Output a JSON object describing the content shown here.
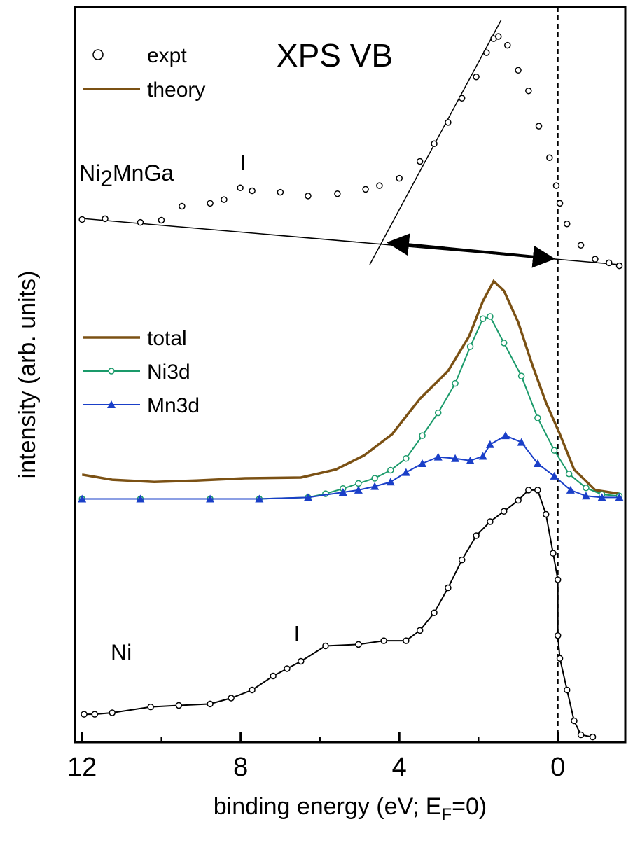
{
  "chart_data": {
    "type": "line",
    "title": "XPS VB",
    "xlabel": [
      "binding energy (eV; E",
      "F",
      "=0)"
    ],
    "ylabel": "intensity (arb. units)",
    "xlim": [
      12.18,
      -1.7
    ],
    "ylim": [
      0,
      100
    ],
    "xticks": [
      12,
      8,
      4,
      0
    ],
    "minor_xticks": [
      10,
      6,
      2
    ],
    "fermi_level": 0,
    "legend_top": {
      "theory_label": "theory",
      "theory_color": "#7b5114"
    },
    "sample_labels": [
      [
        "Ni",
        "2",
        "MnGa"
      ],
      [
        "Ni"
      ]
    ],
    "series": [
      {
        "name": "expt",
        "color": "#000000",
        "line": false,
        "marker": "circle",
        "x": [
          12.0,
          11.42,
          10.53,
          10.0,
          9.48,
          8.77,
          8.42,
          8.01,
          7.71,
          7.0,
          6.3,
          5.56,
          4.85,
          4.5,
          4.0,
          3.48,
          3.12,
          2.77,
          2.42,
          2.06,
          1.8,
          1.62,
          1.5,
          1.27,
          1.0,
          0.74,
          0.48,
          0.21,
          0.04,
          -0.05,
          -0.23,
          -0.58,
          -0.94,
          -1.29,
          -1.55
        ],
        "values": [
          71.1,
          71.2,
          70.7,
          71.0,
          72.9,
          73.3,
          73.8,
          75.4,
          75.0,
          74.8,
          74.3,
          74.6,
          75.2,
          75.7,
          76.7,
          79.0,
          81.4,
          84.3,
          87.6,
          90.5,
          93.8,
          95.7,
          96.0,
          94.8,
          91.4,
          88.6,
          83.8,
          79.5,
          75.7,
          73.3,
          70.5,
          67.6,
          65.7,
          65.2,
          64.8
        ]
      },
      {
        "name": "total",
        "color": "#7b5114",
        "line": true,
        "marker": "none",
        "x": [
          12.0,
          11.24,
          10.18,
          9.12,
          7.89,
          6.48,
          5.6,
          4.89,
          4.18,
          3.48,
          2.77,
          2.24,
          1.89,
          1.62,
          1.36,
          1.0,
          0.65,
          0.3,
          -0.05,
          -0.41,
          -0.94,
          -1.55
        ],
        "values": [
          36.4,
          35.7,
          35.4,
          35.6,
          35.9,
          36.0,
          37.1,
          39.0,
          41.9,
          46.7,
          50.5,
          55.2,
          60.0,
          62.7,
          61.4,
          57.1,
          51.4,
          46.2,
          41.9,
          37.1,
          34.3,
          33.8
        ]
      },
      {
        "name": "Ni3d",
        "color": "#1a9a6a",
        "line": true,
        "marker": "circle",
        "x": [
          12.0,
          10.53,
          8.77,
          7.53,
          6.3,
          5.86,
          5.42,
          5.03,
          4.62,
          4.22,
          3.83,
          3.42,
          3.02,
          2.59,
          2.21,
          1.89,
          1.71,
          1.36,
          0.92,
          0.51,
          0.09,
          -0.28,
          -0.71,
          -1.11,
          -1.55
        ],
        "values": [
          33.1,
          33.1,
          33.1,
          33.1,
          33.3,
          33.8,
          34.5,
          35.2,
          35.9,
          37.0,
          38.6,
          41.7,
          44.8,
          48.8,
          53.8,
          57.6,
          57.9,
          54.3,
          49.8,
          44.1,
          39.7,
          36.5,
          34.6,
          33.7,
          33.5
        ]
      },
      {
        "name": "Mn3d",
        "color": "#1a3fc8",
        "line": true,
        "marker": "triangle",
        "x": [
          12.0,
          10.53,
          8.77,
          7.53,
          6.3,
          5.42,
          5.03,
          4.62,
          4.22,
          3.83,
          3.42,
          3.02,
          2.59,
          2.21,
          1.89,
          1.71,
          1.32,
          0.92,
          0.51,
          0.09,
          -0.32,
          -0.71,
          -1.11,
          -1.55
        ],
        "values": [
          33.1,
          33.1,
          33.1,
          33.1,
          33.3,
          34.0,
          34.3,
          34.8,
          35.4,
          36.7,
          37.9,
          38.8,
          38.6,
          38.3,
          38.9,
          40.5,
          41.7,
          40.8,
          37.9,
          36.2,
          34.3,
          33.5,
          33.3,
          33.3
        ]
      },
      {
        "color": "#000000",
        "line": true,
        "marker": "circle",
        "x": [
          11.95,
          11.68,
          11.24,
          10.27,
          9.56,
          8.77,
          8.24,
          7.71,
          7.18,
          6.83,
          6.48,
          5.86,
          5.03,
          4.39,
          3.83,
          3.48,
          3.12,
          2.77,
          2.42,
          2.06,
          1.71,
          1.36,
          1.0,
          0.74,
          0.51,
          0.3,
          0.12,
          0.0,
          0.0,
          -0.05,
          -0.23,
          -0.41,
          -0.58,
          -0.88
        ],
        "values": [
          3.8,
          3.8,
          4.0,
          4.8,
          5.0,
          5.2,
          6.0,
          7.1,
          9.0,
          10.0,
          11.0,
          13.1,
          13.3,
          13.8,
          13.8,
          15.2,
          17.6,
          21.0,
          24.8,
          28.1,
          30.0,
          31.4,
          32.9,
          34.3,
          34.3,
          31.0,
          25.7,
          22.1,
          14.5,
          11.4,
          7.1,
          2.9,
          1.0,
          0.7
        ]
      }
    ]
  }
}
